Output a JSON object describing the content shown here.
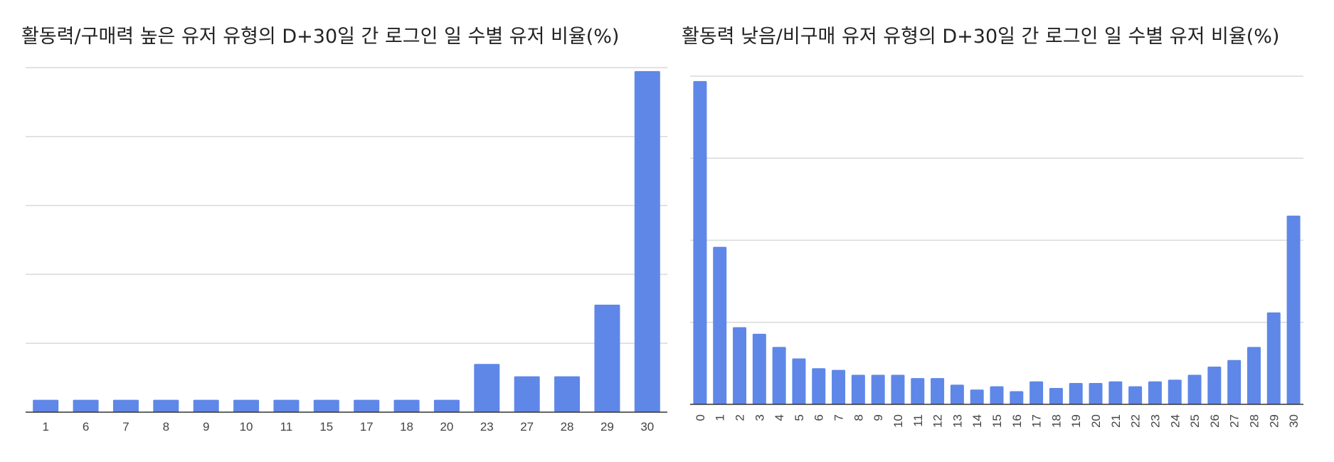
{
  "chart_data": [
    {
      "type": "bar",
      "title": "활동력/구매력 높은 유저 유형의 D+30일 간 로그인 일 수별 유저 비율(%)",
      "categories": [
        "1",
        "6",
        "7",
        "8",
        "9",
        "10",
        "11",
        "15",
        "17",
        "18",
        "20",
        "23",
        "27",
        "28",
        "29",
        "30"
      ],
      "values": [
        1.8,
        1.8,
        1.8,
        1.8,
        1.8,
        1.8,
        1.8,
        1.8,
        1.8,
        1.8,
        1.8,
        7.0,
        5.2,
        5.2,
        15.6,
        49.5
      ],
      "ylim": [
        0,
        50
      ],
      "grid": true,
      "color": "#5f87e8"
    },
    {
      "type": "bar",
      "title": "활동력 낮음/비구매 유저 유형의 D+30일 간 로그인 일 수별 유저 비율(%)",
      "categories": [
        "0",
        "1",
        "2",
        "3",
        "4",
        "5",
        "6",
        "7",
        "8",
        "9",
        "10",
        "11",
        "12",
        "13",
        "14",
        "15",
        "16",
        "17",
        "18",
        "19",
        "20",
        "21",
        "22",
        "23",
        "24",
        "25",
        "26",
        "27",
        "28",
        "29",
        "30"
      ],
      "values": [
        19.7,
        9.6,
        4.7,
        4.3,
        3.5,
        2.8,
        2.2,
        2.1,
        1.8,
        1.8,
        1.8,
        1.6,
        1.6,
        1.2,
        0.9,
        1.1,
        0.8,
        1.4,
        1.0,
        1.3,
        1.3,
        1.4,
        1.1,
        1.4,
        1.5,
        1.8,
        2.3,
        2.7,
        3.5,
        5.6,
        11.5
      ],
      "ylim": [
        0,
        20
      ],
      "grid": true,
      "color": "#5f87e8"
    }
  ]
}
